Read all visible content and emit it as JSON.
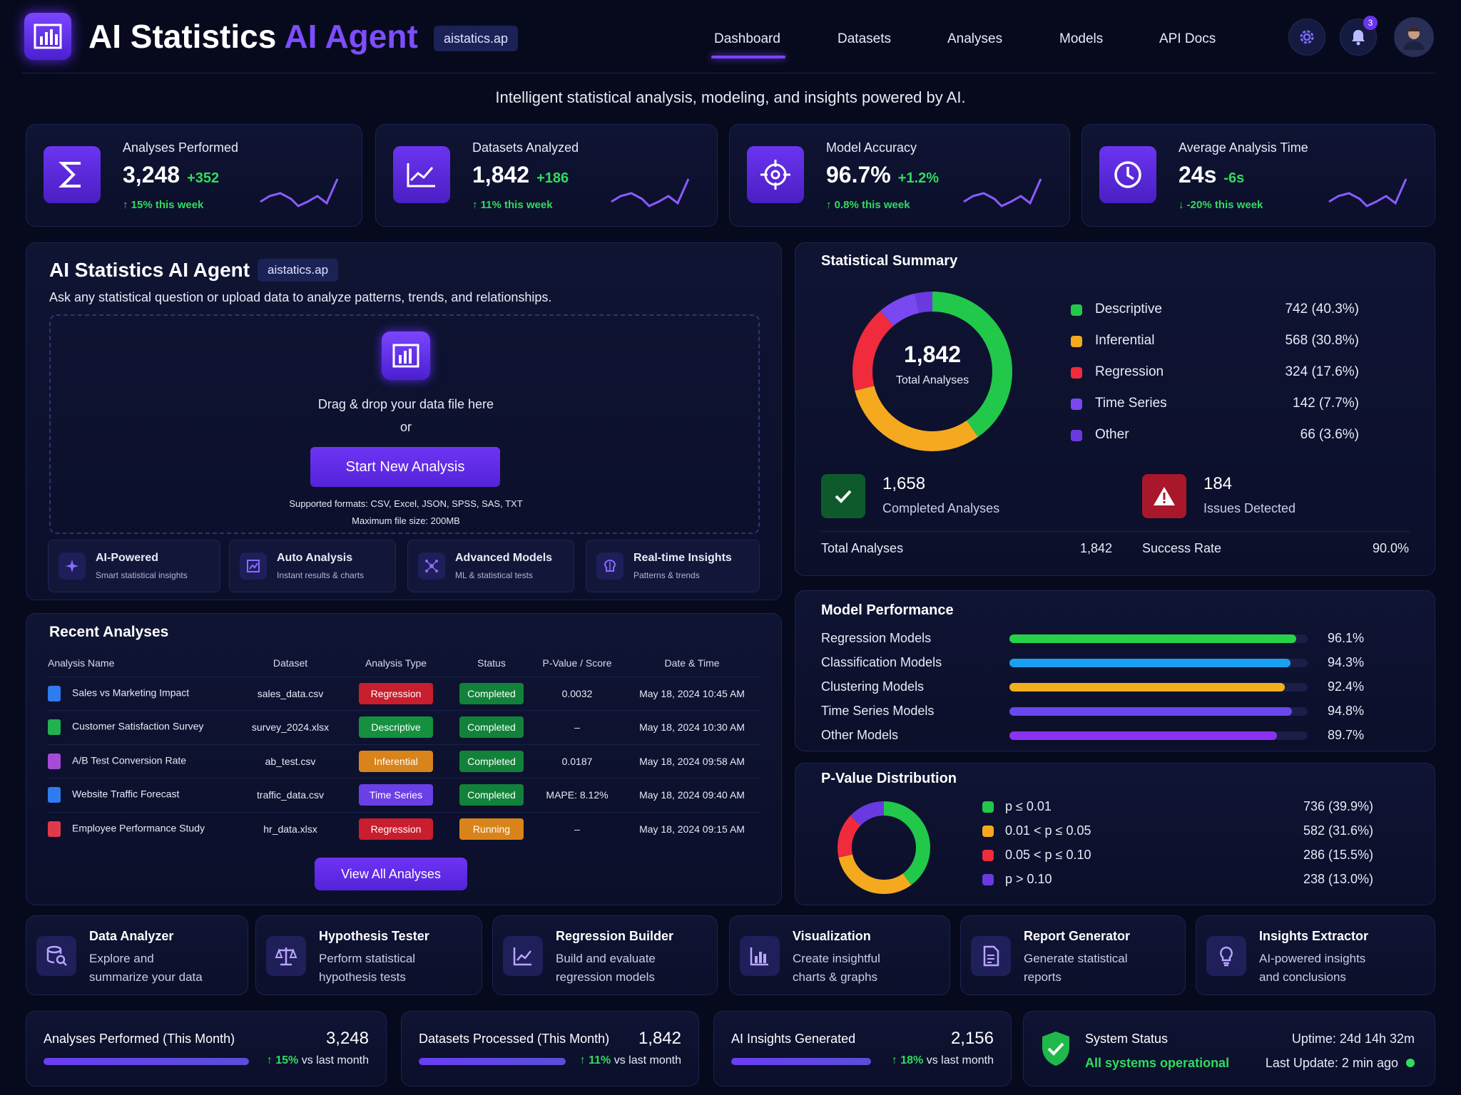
{
  "header": {
    "title_main": "AI Statistics",
    "title_accent": "AI Agent",
    "domain_badge": "aistatics.ap",
    "nav": [
      "Dashboard",
      "Datasets",
      "Analyses",
      "Models",
      "API Docs"
    ],
    "notifications_count": "3",
    "tagline": "Intelligent statistical analysis, modeling, and insights powered by AI."
  },
  "stats": [
    {
      "title": "Analyses Performed",
      "value": "3,248",
      "delta": "+352",
      "sub": "↑ 15% this week",
      "icon": "sigma-icon"
    },
    {
      "title": "Datasets Analyzed",
      "value": "1,842",
      "delta": "+186",
      "sub": "↑ 11% this week",
      "icon": "line-chart-icon"
    },
    {
      "title": "Model Accuracy",
      "value": "96.7%",
      "delta": "+1.2%",
      "sub": "↑ 0.8% this week",
      "icon": "target-icon"
    },
    {
      "title": "Average Analysis Time",
      "value": "24s",
      "delta": "-6s",
      "sub": "↓ -20% this week",
      "icon": "clock-icon"
    }
  ],
  "agent": {
    "title": "AI Statistics AI Agent",
    "badge": "aistatics.ap",
    "desc": "Ask any statistical question or upload data to analyze patterns, trends, and relationships.",
    "drop_text": "Drag & drop your data file here",
    "or": "or",
    "button": "Start New Analysis",
    "formats": "Supported formats: CSV, Excel, JSON, SPSS, SAS, TXT",
    "max_size": "Maximum file size: 200MB",
    "features": [
      {
        "title": "AI-Powered",
        "sub": "Smart statistical insights"
      },
      {
        "title": "Auto Analysis",
        "sub": "Instant results & charts"
      },
      {
        "title": "Advanced Models",
        "sub": "ML & statistical tests"
      },
      {
        "title": "Real-time Insights",
        "sub": "Patterns & trends"
      }
    ]
  },
  "recent": {
    "title": "Recent Analyses",
    "columns": [
      "Analysis Name",
      "Dataset",
      "Analysis Type",
      "Status",
      "P-Value / Score",
      "Date & Time"
    ],
    "rows": [
      {
        "name": "Sales vs Marketing Impact",
        "dataset": "sales_data.csv",
        "type": "Regression",
        "type_color": "#c81e2d",
        "status": "Completed",
        "status_color": "#12823a",
        "score": "0.0032",
        "date": "May 18, 2024 10:45 AM",
        "icon_color": "#2f7bf0"
      },
      {
        "name": "Customer Satisfaction Survey",
        "dataset": "survey_2024.xlsx",
        "type": "Descriptive",
        "type_color": "#14903f",
        "status": "Completed",
        "status_color": "#12823a",
        "score": "–",
        "date": "May 18, 2024 10:30 AM",
        "icon_color": "#22b050"
      },
      {
        "name": "A/B Test Conversion Rate",
        "dataset": "ab_test.csv",
        "type": "Inferential",
        "type_color": "#d9841a",
        "status": "Completed",
        "status_color": "#12823a",
        "score": "0.0187",
        "date": "May 18, 2024 09:58 AM",
        "icon_color": "#a74ad8"
      },
      {
        "name": "Website Traffic Forecast",
        "dataset": "traffic_data.csv",
        "type": "Time Series",
        "type_color": "#6b3fe6",
        "status": "Completed",
        "status_color": "#12823a",
        "score": "MAPE: 8.12%",
        "date": "May 18, 2024 09:40 AM",
        "icon_color": "#2f7bf0"
      },
      {
        "name": "Employee Performance Study",
        "dataset": "hr_data.xlsx",
        "type": "Regression",
        "type_color": "#c81e2d",
        "status": "Running",
        "status_color": "#d9841a",
        "score": "–",
        "date": "May 18, 2024 09:15 AM",
        "icon_color": "#e03a4a"
      }
    ],
    "button": "View All Analyses"
  },
  "summary": {
    "title": "Statistical Summary",
    "total_value": "1,842",
    "total_label": "Total Analyses",
    "legend": [
      {
        "label": "Descriptive",
        "value": "742 (40.3%)",
        "color": "#22c84a",
        "pct": 40.3
      },
      {
        "label": "Inferential",
        "value": "568 (30.8%)",
        "color": "#f5a91e",
        "pct": 30.8
      },
      {
        "label": "Regression",
        "value": "324 (17.6%)",
        "color": "#ef2b3c",
        "pct": 17.6
      },
      {
        "label": "Time Series",
        "value": "142 (7.7%)",
        "color": "#7a48f0",
        "pct": 7.7
      },
      {
        "label": "Other",
        "value": "66 (3.6%)",
        "color": "#6a3ae0",
        "pct": 3.6
      }
    ],
    "completed_value": "1,658",
    "completed_label": "Completed Analyses",
    "issues_value": "184",
    "issues_label": "Issues Detected",
    "total_row_label": "Total Analyses",
    "total_row_value": "1,842",
    "success_label": "Success Rate",
    "success_value": "90.0%"
  },
  "performance": {
    "title": "Model Performance",
    "rows": [
      {
        "label": "Regression Models",
        "value": "96.1%",
        "pct": 96.1,
        "color": "#26d24a"
      },
      {
        "label": "Classification Models",
        "value": "94.3%",
        "pct": 94.3,
        "color": "#1aa0f0"
      },
      {
        "label": "Clustering Models",
        "value": "92.4%",
        "pct": 92.4,
        "color": "#f2b01e"
      },
      {
        "label": "Time Series Models",
        "value": "94.8%",
        "pct": 94.8,
        "color": "#6a48f0"
      },
      {
        "label": "Other Models",
        "value": "89.7%",
        "pct": 89.7,
        "color": "#8a32f0"
      }
    ]
  },
  "pvalue": {
    "title": "P-Value Distribution",
    "rows": [
      {
        "label": "p ≤ 0.01",
        "value": "736 (39.9%)",
        "color": "#22c84a",
        "pct": 39.9
      },
      {
        "label": "0.01 < p ≤ 0.05",
        "value": "582 (31.6%)",
        "color": "#f5a91e",
        "pct": 31.6
      },
      {
        "label": "0.05 < p ≤ 0.10",
        "value": "286 (15.5%)",
        "color": "#ef2b3c",
        "pct": 15.5
      },
      {
        "label": "p > 0.10",
        "value": "238 (13.0%)",
        "color": "#6a3ae0",
        "pct": 13.0
      }
    ]
  },
  "tools": [
    {
      "title": "Data Analyzer",
      "desc": "Explore and summarize your data",
      "icon": "database-search-icon"
    },
    {
      "title": "Hypothesis Tester",
      "desc": "Perform statistical hypothesis tests",
      "icon": "scales-icon"
    },
    {
      "title": "Regression Builder",
      "desc": "Build and evaluate regression models",
      "icon": "trend-chart-icon"
    },
    {
      "title": "Visualization",
      "desc": "Create insightful charts & graphs",
      "icon": "bar-chart-icon"
    },
    {
      "title": "Report Generator",
      "desc": "Generate statistical reports",
      "icon": "document-icon"
    },
    {
      "title": "Insights Extractor",
      "desc": "AI-powered insights and conclusions",
      "icon": "lightbulb-icon"
    }
  ],
  "bottom": [
    {
      "label": "Analyses Performed (This Month)",
      "value": "3,248",
      "pct": "↑ 15%",
      "vs": "vs last month"
    },
    {
      "label": "Datasets Processed (This Month)",
      "value": "1,842",
      "pct": "↑ 11%",
      "vs": "vs last month"
    },
    {
      "label": "AI Insights Generated",
      "value": "2,156",
      "pct": "↑ 18%",
      "vs": "vs last month"
    }
  ],
  "system": {
    "title": "System Status",
    "status": "All systems operational",
    "uptime": "Uptime: 24d 14h 32m",
    "last_update": "Last Update: 2 min ago"
  },
  "colors": {
    "accent": "#6b34f0",
    "green": "#2fdc5e",
    "background": "#070a1c"
  }
}
